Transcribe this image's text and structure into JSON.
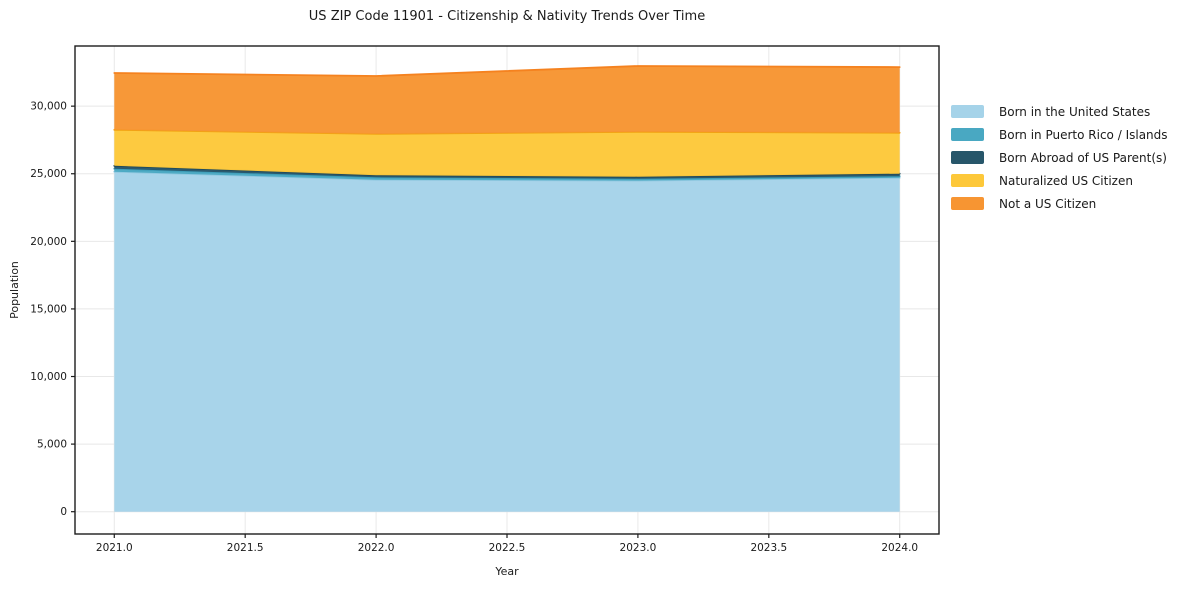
{
  "chart_data": {
    "type": "area",
    "stacked": true,
    "title": "US ZIP Code 11901 - Citizenship & Nativity Trends Over Time",
    "xlabel": "Year",
    "ylabel": "Population",
    "x": [
      2021,
      2022,
      2023,
      2024
    ],
    "series": [
      {
        "name": "Born in the United States",
        "values": [
          25150,
          24560,
          24490,
          24700
        ],
        "fill": "#a5d3e9",
        "stroke": "#90c8e0"
      },
      {
        "name": "Born in Puerto Rico / Islands",
        "values": [
          220,
          180,
          140,
          120
        ],
        "fill": "#49a8c2",
        "stroke": "#3b9cb8"
      },
      {
        "name": "Born Abroad of US Parent(s)",
        "values": [
          220,
          150,
          150,
          180
        ],
        "fill": "#27566a",
        "stroke": "#1f4a5c"
      },
      {
        "name": "Naturalized US Citizen",
        "values": [
          2660,
          3060,
          3320,
          3030
        ],
        "fill": "#fdc83a",
        "stroke": "#f2a313"
      },
      {
        "name": "Not a US Citizen",
        "values": [
          4200,
          4280,
          4870,
          4860
        ],
        "fill": "#f79532",
        "stroke": "#f5821f"
      }
    ],
    "totals": [
      32450,
      32230,
      32970,
      32890
    ],
    "xticks": {
      "values": [
        2021,
        2021.5,
        2022,
        2022.5,
        2023,
        2023.5,
        2024
      ],
      "labels": [
        "2021.0",
        "2021.5",
        "2022.0",
        "2022.5",
        "2023.0",
        "2023.5",
        "2024.0"
      ]
    },
    "yticks": {
      "values": [
        0,
        5000,
        10000,
        15000,
        20000,
        25000,
        30000
      ],
      "labels": [
        "0",
        "5,000",
        "10,000",
        "15,000",
        "20,000",
        "25,000",
        "30,000"
      ]
    },
    "xlim": [
      2020.85,
      2024.15
    ],
    "ylim": [
      -1650,
      34450
    ],
    "grid": true,
    "legend_position": "right-outside"
  },
  "colors": {
    "background": "#ffffff",
    "grid": "#e8e8e8",
    "spine": "#1c1c1c",
    "tick": "#1c1c1c",
    "text": "#1a1a1a"
  }
}
